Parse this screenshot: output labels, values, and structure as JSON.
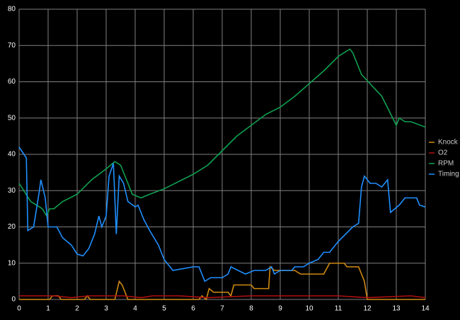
{
  "chart_data": {
    "type": "line",
    "xlim": [
      0,
      14
    ],
    "xticks": [
      0,
      1,
      2,
      3,
      4,
      5,
      6,
      7,
      8,
      9,
      10,
      11,
      12,
      13,
      14
    ],
    "ylim": [
      0,
      80
    ],
    "yticks": [
      0,
      10,
      20,
      30,
      40,
      50,
      60,
      70,
      80
    ],
    "grid": true,
    "legend": "right",
    "series": [
      {
        "name": "Knock",
        "color": "#d08a10",
        "x": [
          0,
          1.05,
          1.15,
          1.35,
          1.45,
          2.25,
          2.35,
          2.45,
          3.3,
          3.45,
          3.55,
          3.75,
          6.2,
          6.3,
          6.45,
          6.55,
          6.7,
          7.2,
          7.3,
          7.4,
          8.0,
          8.1,
          8.6,
          8.65,
          8.8,
          9.5,
          9.7,
          10.5,
          10.7,
          11.2,
          11.3,
          11.7,
          11.9,
          12.0,
          14
        ],
        "values": [
          0,
          0,
          1,
          1,
          0,
          0,
          1,
          0,
          0,
          5,
          4,
          0,
          0,
          1,
          0,
          3,
          2,
          2,
          1,
          4,
          4,
          3,
          3,
          9,
          8,
          8,
          7,
          7,
          10,
          10,
          9,
          9,
          5,
          0,
          0
        ]
      },
      {
        "name": "O2",
        "color": "#b01010",
        "x": [
          0,
          1.2,
          1.8,
          2.4,
          3.6,
          4.2,
          4.6,
          5.5,
          6.5,
          8.0,
          9.5,
          11.0,
          12.0,
          13.5,
          14
        ],
        "values": [
          1,
          1,
          0.5,
          1,
          1,
          0.5,
          1,
          1,
          0.5,
          1,
          1,
          1,
          0.5,
          1,
          0.5
        ]
      },
      {
        "name": "RPM",
        "color": "#10a050",
        "x": [
          0,
          0.4,
          0.8,
          0.95,
          1.05,
          1.2,
          1.5,
          2,
          2.5,
          3,
          3.3,
          3.5,
          3.7,
          3.9,
          4.2,
          4.5,
          5,
          5.5,
          6,
          6.5,
          7,
          7.5,
          8,
          8.5,
          9,
          9.5,
          10,
          10.5,
          11,
          11.4,
          11.5,
          11.8,
          12.5,
          13,
          13.1,
          13.3,
          13.5,
          14
        ],
        "values": [
          32,
          27,
          25,
          23,
          25,
          25,
          27,
          29,
          33,
          36,
          38,
          37,
          33,
          29,
          28,
          29,
          30.5,
          32.5,
          34.5,
          37,
          41,
          45,
          48,
          51,
          53,
          56,
          59.5,
          63,
          67,
          69,
          68,
          62,
          56,
          48,
          50,
          49,
          49,
          47.5
        ]
      },
      {
        "name": "Timing",
        "color": "#2090ff",
        "x": [
          0,
          0.25,
          0.3,
          0.5,
          0.7,
          0.75,
          0.9,
          1.0,
          1.3,
          1.5,
          1.8,
          2.0,
          2.2,
          2.4,
          2.6,
          2.75,
          2.85,
          3.0,
          3.1,
          3.25,
          3.35,
          3.45,
          3.6,
          3.75,
          4.0,
          4.1,
          4.3,
          4.5,
          4.8,
          5.0,
          5.3,
          6.0,
          6.2,
          6.3,
          6.4,
          6.6,
          7.0,
          7.2,
          7.3,
          7.8,
          8.1,
          8.5,
          8.7,
          8.8,
          9.0,
          9.4,
          9.5,
          9.8,
          10.0,
          10.3,
          10.5,
          10.7,
          11.0,
          11.5,
          11.7,
          11.8,
          11.9,
          12.1,
          12.3,
          12.5,
          12.7,
          12.8,
          13.1,
          13.3,
          13.7,
          13.8,
          14.0
        ],
        "values": [
          42,
          39,
          19,
          20,
          30,
          33,
          28,
          20,
          20,
          17,
          15,
          12.5,
          12,
          14,
          18,
          23,
          20,
          23,
          34,
          37.5,
          18,
          34,
          32,
          27,
          25.5,
          26,
          22,
          19,
          15,
          11,
          8,
          9,
          9,
          7,
          5,
          6,
          6,
          7,
          9,
          7,
          8,
          8,
          9,
          7,
          8,
          8,
          9,
          9,
          10,
          11,
          13,
          13,
          16,
          20,
          21,
          31,
          34,
          32,
          32,
          31,
          33,
          24,
          26,
          28,
          28,
          26,
          25.5
        ]
      }
    ]
  }
}
